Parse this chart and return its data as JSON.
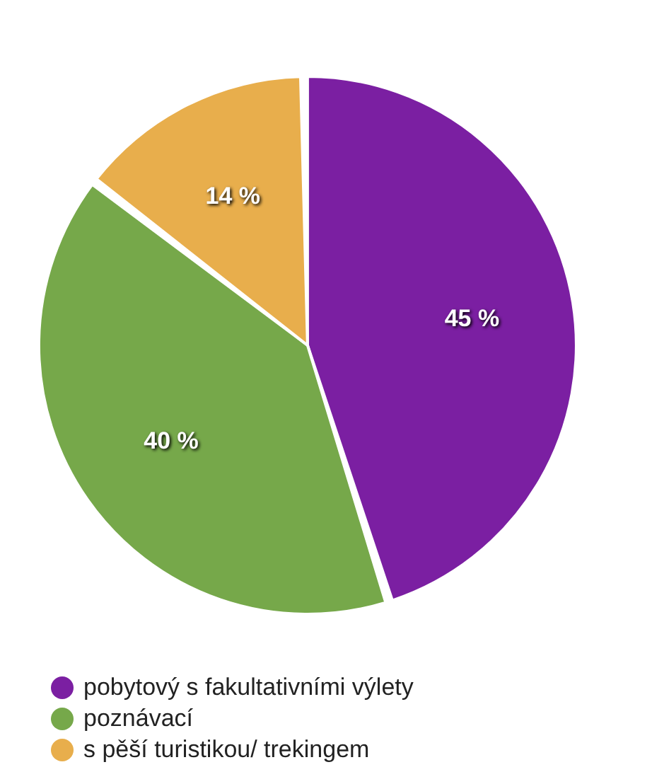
{
  "chart_data": {
    "type": "pie",
    "categories": [
      "pobytový s fakultativními výlety",
      "poznávací",
      "s pěší turistikou/ trekingem"
    ],
    "values": [
      45,
      40,
      14
    ],
    "value_labels": [
      "45 %",
      "40 %",
      "14 %"
    ],
    "colors": [
      "#7b1fa2",
      "#76a84a",
      "#e8ae4c"
    ],
    "legend": "bottom"
  }
}
